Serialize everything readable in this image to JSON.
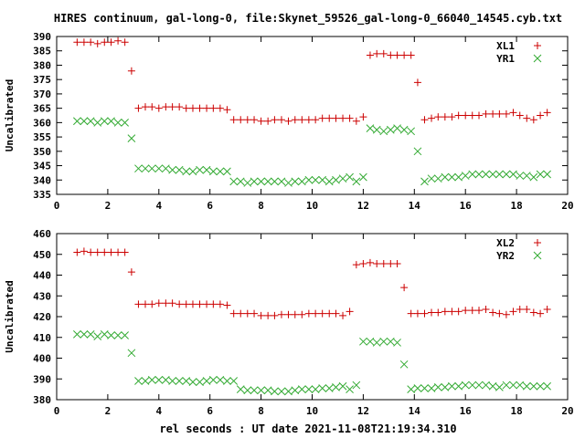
{
  "title": "HIRES continuum, gal-long-0, file:Skynet_59526_gal-long-0_66040_14545.cyb.txt",
  "xlabel": "rel seconds : UT date 2021-11-08T21:19:34.310",
  "colors": {
    "plus": "#cc0000",
    "cross": "#33aa33",
    "axis": "#000000"
  },
  "chart_data": [
    {
      "type": "scatter",
      "ylabel": "Uncalibrated",
      "xlim": [
        0,
        20
      ],
      "ylim": [
        335,
        390
      ],
      "xticks": [
        0,
        2,
        4,
        6,
        8,
        10,
        12,
        14,
        16,
        18,
        20
      ],
      "yticks": [
        335,
        340,
        345,
        350,
        355,
        360,
        365,
        370,
        375,
        380,
        385,
        390
      ],
      "legend_position": "top-right",
      "series": [
        {
          "name": "XL1",
          "marker": "plus",
          "x": [
            0.8,
            1.07,
            1.33,
            1.6,
            1.87,
            2.13,
            2.4,
            2.67,
            2.93,
            3.2,
            3.47,
            3.73,
            4.0,
            4.27,
            4.53,
            4.8,
            5.07,
            5.33,
            5.6,
            5.87,
            6.13,
            6.4,
            6.67,
            6.93,
            7.2,
            7.47,
            7.73,
            8.0,
            8.27,
            8.53,
            8.8,
            9.07,
            9.33,
            9.6,
            9.87,
            10.13,
            10.4,
            10.67,
            10.93,
            11.2,
            11.47,
            11.73,
            12.0,
            12.27,
            12.53,
            12.8,
            13.07,
            13.33,
            13.6,
            13.87,
            14.13,
            14.4,
            14.67,
            14.93,
            15.2,
            15.47,
            15.73,
            16.0,
            16.27,
            16.53,
            16.8,
            17.07,
            17.33,
            17.6,
            17.87,
            18.13,
            18.4,
            18.67,
            18.93,
            19.2
          ],
          "y": [
            388,
            388,
            388,
            387.5,
            388,
            388,
            388.5,
            388,
            378,
            365,
            365.5,
            365.5,
            365,
            365.5,
            365.5,
            365.5,
            365,
            365,
            365,
            365,
            365,
            365,
            364.5,
            361,
            361,
            361,
            361,
            360.5,
            360.5,
            361,
            361,
            360.5,
            361,
            361,
            361,
            361,
            361.5,
            361.5,
            361.5,
            361.5,
            361.5,
            360.5,
            362,
            383.5,
            384,
            384,
            383.5,
            383.5,
            383.5,
            383.5,
            374,
            361,
            361.5,
            362,
            362,
            362,
            362.5,
            362.5,
            362.5,
            362.5,
            363,
            363,
            363,
            363,
            363.5,
            362.5,
            361.5,
            361,
            362.5,
            363.5
          ]
        },
        {
          "name": "YR1",
          "marker": "cross",
          "x": [
            0.8,
            1.07,
            1.33,
            1.6,
            1.87,
            2.13,
            2.4,
            2.67,
            2.93,
            3.2,
            3.47,
            3.73,
            4.0,
            4.27,
            4.53,
            4.8,
            5.07,
            5.33,
            5.6,
            5.87,
            6.13,
            6.4,
            6.67,
            6.93,
            7.2,
            7.47,
            7.73,
            8.0,
            8.27,
            8.53,
            8.8,
            9.07,
            9.33,
            9.6,
            9.87,
            10.13,
            10.4,
            10.67,
            10.93,
            11.2,
            11.47,
            11.73,
            12.0,
            12.27,
            12.53,
            12.8,
            13.07,
            13.33,
            13.6,
            13.87,
            14.13,
            14.4,
            14.67,
            14.93,
            15.2,
            15.47,
            15.73,
            16.0,
            16.27,
            16.53,
            16.8,
            17.07,
            17.33,
            17.6,
            17.87,
            18.13,
            18.4,
            18.67,
            18.93,
            19.2
          ],
          "y": [
            360.5,
            360.5,
            360.5,
            360,
            360.5,
            360.5,
            360,
            360,
            354.5,
            344,
            344,
            344,
            344,
            344,
            343.5,
            343.5,
            343,
            343,
            343.5,
            343.5,
            343,
            343,
            343,
            339.5,
            339.5,
            339,
            339.5,
            339.5,
            339.5,
            339.5,
            339.5,
            339,
            339.5,
            339.5,
            340,
            340,
            340,
            339.5,
            340,
            340.5,
            341,
            339.5,
            341,
            358,
            357.5,
            357,
            357.5,
            358,
            357.5,
            357,
            350,
            339.5,
            340.5,
            340.5,
            341,
            341,
            341,
            341.5,
            342,
            342,
            342,
            342,
            342,
            342,
            342,
            341.5,
            341.5,
            341,
            342,
            342
          ]
        }
      ]
    },
    {
      "type": "scatter",
      "ylabel": "Uncalibrated",
      "xlim": [
        0,
        20
      ],
      "ylim": [
        380,
        460
      ],
      "xticks": [
        0,
        2,
        4,
        6,
        8,
        10,
        12,
        14,
        16,
        18,
        20
      ],
      "yticks": [
        380,
        390,
        400,
        410,
        420,
        430,
        440,
        450,
        460
      ],
      "legend_position": "top-right",
      "series": [
        {
          "name": "XL2",
          "marker": "plus",
          "x": [
            0.8,
            1.07,
            1.33,
            1.6,
            1.87,
            2.13,
            2.4,
            2.67,
            2.93,
            3.2,
            3.47,
            3.73,
            4.0,
            4.27,
            4.53,
            4.8,
            5.07,
            5.33,
            5.6,
            5.87,
            6.13,
            6.4,
            6.67,
            6.93,
            7.2,
            7.47,
            7.73,
            8.0,
            8.27,
            8.53,
            8.8,
            9.07,
            9.33,
            9.6,
            9.87,
            10.13,
            10.4,
            10.67,
            10.93,
            11.2,
            11.47,
            11.73,
            12.0,
            12.27,
            12.53,
            12.8,
            13.07,
            13.33,
            13.6,
            13.87,
            14.13,
            14.4,
            14.67,
            14.93,
            15.2,
            15.47,
            15.73,
            16.0,
            16.27,
            16.53,
            16.8,
            17.07,
            17.33,
            17.6,
            17.87,
            18.13,
            18.4,
            18.67,
            18.93,
            19.2
          ],
          "y": [
            451,
            451.5,
            451,
            451,
            451,
            451,
            451,
            451,
            441.5,
            426,
            426,
            426,
            426.5,
            426.5,
            426.5,
            426,
            426,
            426,
            426,
            426,
            426,
            426,
            425.5,
            421.5,
            421.5,
            421.5,
            421.5,
            420.5,
            420.5,
            420.5,
            421,
            421,
            421,
            421,
            421.5,
            421.5,
            421.5,
            421.5,
            421.5,
            420.5,
            422.5,
            445,
            445.5,
            446,
            445.5,
            445.5,
            445.5,
            445.5,
            434,
            421.5,
            421.5,
            421.5,
            422,
            422,
            422.5,
            422.5,
            422.5,
            423,
            423,
            423,
            423.5,
            422,
            421.5,
            421,
            422.5,
            423.5,
            423.5,
            422,
            421.5,
            423.5
          ]
        },
        {
          "name": "YR2",
          "marker": "cross",
          "x": [
            0.8,
            1.07,
            1.33,
            1.6,
            1.87,
            2.13,
            2.4,
            2.67,
            2.93,
            3.2,
            3.47,
            3.73,
            4.0,
            4.27,
            4.53,
            4.8,
            5.07,
            5.33,
            5.6,
            5.87,
            6.13,
            6.4,
            6.67,
            6.93,
            7.2,
            7.47,
            7.73,
            8.0,
            8.27,
            8.53,
            8.8,
            9.07,
            9.33,
            9.6,
            9.87,
            10.13,
            10.4,
            10.67,
            10.93,
            11.2,
            11.47,
            11.73,
            12.0,
            12.27,
            12.53,
            12.8,
            13.07,
            13.33,
            13.6,
            13.87,
            14.13,
            14.4,
            14.67,
            14.93,
            15.2,
            15.47,
            15.73,
            16.0,
            16.27,
            16.53,
            16.8,
            17.07,
            17.33,
            17.6,
            17.87,
            18.13,
            18.4,
            18.67,
            18.93,
            19.2
          ],
          "y": [
            411.5,
            411.5,
            411.5,
            410.5,
            411.5,
            411,
            411,
            411,
            402.5,
            389,
            389,
            389.5,
            389.5,
            389.5,
            389,
            389,
            389,
            388.5,
            388.5,
            389,
            389.5,
            389.5,
            389,
            389,
            385,
            384.5,
            384.5,
            384.5,
            384.5,
            384,
            384,
            384,
            384.5,
            385,
            385,
            385,
            385.5,
            385.5,
            386,
            386.5,
            385,
            387,
            408,
            408,
            407.5,
            408,
            408,
            407.5,
            397,
            385,
            385.5,
            385.5,
            385.5,
            386,
            386,
            386.5,
            386.5,
            387,
            387,
            387,
            387,
            386.5,
            386,
            387,
            387,
            387,
            386.5,
            386.5,
            386.5,
            386.5
          ]
        }
      ]
    }
  ]
}
